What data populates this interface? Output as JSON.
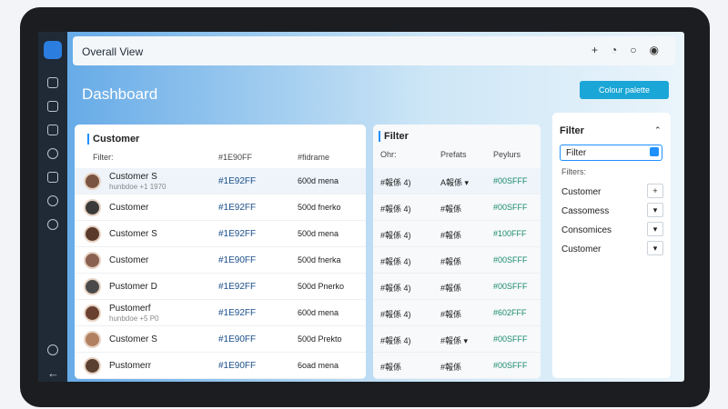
{
  "header": {
    "title": "Overall View"
  },
  "dashboard": {
    "title": "Dashboard",
    "button": "Colour palette"
  },
  "customers": {
    "title": "Customer",
    "columns": [
      "Filter:",
      "#1E90FF",
      "#fidrame"
    ],
    "rows": [
      {
        "name": "Customer S",
        "sub": "hunbdoe +1 1970",
        "code": "#1E92FF",
        "text": "600d mena"
      },
      {
        "name": "Customer",
        "code": "#1E92FF",
        "text": "500d fnerko"
      },
      {
        "name": "Customer S",
        "code": "#1E92FF",
        "text": "500d mena"
      },
      {
        "name": "Customer",
        "code": "#1E90FF",
        "text": "500d fnerka"
      },
      {
        "name": "Pustomer D",
        "code": "#1E92FF",
        "text": "500d Pnerko"
      },
      {
        "name": "Pustomerf",
        "sub": "hunbdoe +5 P0",
        "code": "#1E92FF",
        "text": "600d mena"
      },
      {
        "name": "Customer S",
        "code": "#1E90FF",
        "text": "500d Prekto"
      },
      {
        "name": "Pustomerr",
        "code": "#1E90FF",
        "text": "6oad mena"
      }
    ]
  },
  "filter_table": {
    "title": "Filter",
    "columns": [
      "Ohr:",
      "Prefats",
      "Peylurs"
    ],
    "rows": [
      [
        "#報係 4)",
        "A報係 ▾",
        "#00SFFF"
      ],
      [
        "#報係 4)",
        "#報係",
        "#00SFFF"
      ],
      [
        "#報係 4)",
        "#報係",
        "#100FFF"
      ],
      [
        "#報係 4)",
        "#報係",
        "#00SFFF"
      ],
      [
        "#報係 4)",
        "#報係",
        "#00SFFF"
      ],
      [
        "#報係 4)",
        "#報係",
        "#602FFF"
      ],
      [
        "#報係 4)",
        "#報係 ▾",
        "#00SFFF"
      ],
      [
        "#報係",
        "#報係",
        "#00SFFF"
      ]
    ]
  },
  "filter_panel": {
    "title": "Filter",
    "select": "Filter",
    "label": "Filters:",
    "items": [
      {
        "name": "Customer",
        "control": "+"
      },
      {
        "name": "Cassomess",
        "control": "▾"
      },
      {
        "name": "Consomices",
        "control": "▾"
      },
      {
        "name": "Customer",
        "control": "▾"
      }
    ]
  }
}
